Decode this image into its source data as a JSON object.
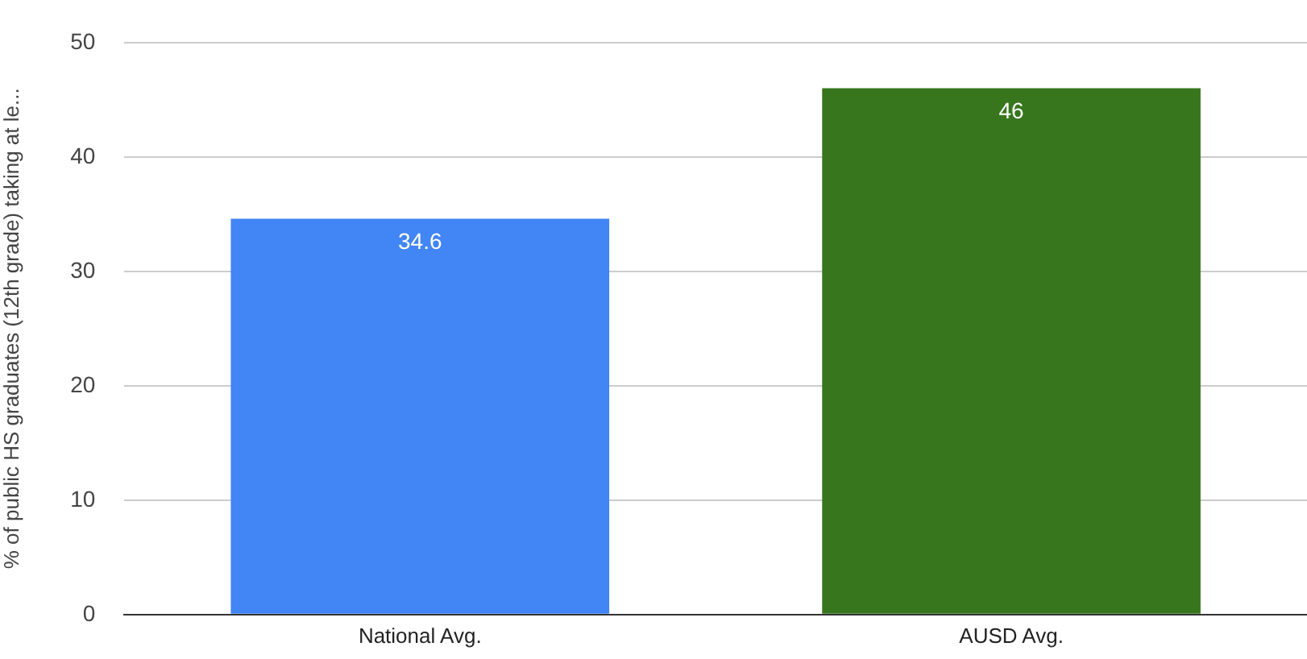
{
  "chart_data": {
    "type": "bar",
    "ylabel": "% of public HS graduates (12th grade) taking at le...",
    "categories": [
      "National Avg.",
      "AUSD Avg."
    ],
    "values": [
      34.6,
      46
    ],
    "colors": [
      "#4285f4",
      "#38761d"
    ],
    "ylim": [
      0,
      50
    ],
    "yticks": [
      0,
      10,
      20,
      30,
      40,
      50
    ],
    "grid": "y",
    "data_labels": true
  }
}
